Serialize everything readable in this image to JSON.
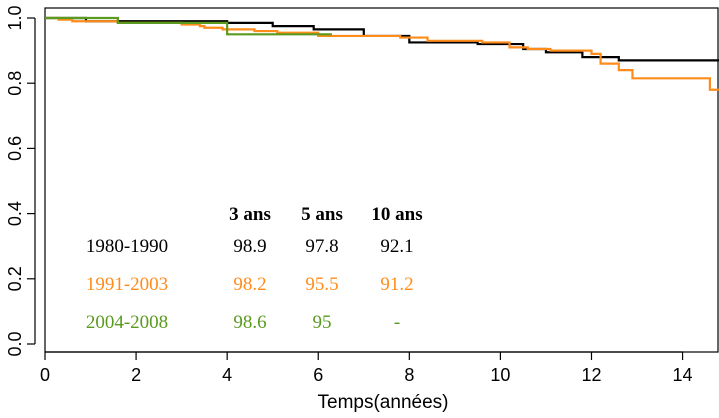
{
  "chart_data": {
    "type": "line",
    "xlabel": "Temps(années)",
    "ylabel": "",
    "xlim": [
      0,
      14.8
    ],
    "ylim": [
      0.0,
      1.0
    ],
    "x_ticks": [
      0,
      2,
      4,
      6,
      8,
      10,
      12,
      14
    ],
    "y_ticks": [
      0.0,
      0.2,
      0.4,
      0.6,
      0.8,
      1.0
    ],
    "y_tick_labels": [
      "0.0",
      "0.2",
      "0.4",
      "0.6",
      "0.8",
      "1.0"
    ],
    "grid": false,
    "series": [
      {
        "name": "1980-1990",
        "color": "#000000",
        "step": true,
        "points": [
          [
            0,
            1.0
          ],
          [
            0.9,
            0.99
          ],
          [
            4.0,
            0.985
          ],
          [
            5.0,
            0.975
          ],
          [
            5.9,
            0.965
          ],
          [
            7.0,
            0.945
          ],
          [
            8.0,
            0.925
          ],
          [
            9.5,
            0.92
          ],
          [
            10.5,
            0.905
          ],
          [
            11.0,
            0.895
          ],
          [
            11.8,
            0.88
          ],
          [
            12.6,
            0.87
          ],
          [
            13.4,
            0.87
          ],
          [
            14.8,
            0.87
          ]
        ]
      },
      {
        "name": "1991-2003",
        "color": "#ff8c1a",
        "step": true,
        "points": [
          [
            0,
            1.0
          ],
          [
            0.3,
            0.995
          ],
          [
            0.6,
            0.99
          ],
          [
            1.6,
            0.985
          ],
          [
            3.0,
            0.98
          ],
          [
            3.4,
            0.975
          ],
          [
            3.5,
            0.97
          ],
          [
            3.9,
            0.965
          ],
          [
            4.6,
            0.96
          ],
          [
            5.1,
            0.955
          ],
          [
            6.0,
            0.945
          ],
          [
            7.8,
            0.94
          ],
          [
            8.4,
            0.93
          ],
          [
            9.6,
            0.925
          ],
          [
            10.2,
            0.91
          ],
          [
            10.6,
            0.905
          ],
          [
            11.1,
            0.9
          ],
          [
            12.0,
            0.89
          ],
          [
            12.2,
            0.86
          ],
          [
            12.6,
            0.84
          ],
          [
            12.9,
            0.815
          ],
          [
            14.6,
            0.78
          ],
          [
            14.8,
            0.78
          ]
        ]
      },
      {
        "name": "2004-2008",
        "color": "#5a9a1e",
        "step": true,
        "points": [
          [
            0,
            1.0
          ],
          [
            1.6,
            0.985
          ],
          [
            4.0,
            0.95
          ],
          [
            6.3,
            0.95
          ]
        ]
      }
    ],
    "table": {
      "headers": [
        "3 ans",
        "5 ans",
        "10 ans"
      ],
      "rows": [
        {
          "label": "1980-1990",
          "color": "#000000",
          "values": [
            "98.9",
            "97.8",
            "92.1"
          ]
        },
        {
          "label": "1991-2003",
          "color": "#ff8c1a",
          "values": [
            "98.2",
            "95.5",
            "91.2"
          ]
        },
        {
          "label": "2004-2008",
          "color": "#5a9a1e",
          "values": [
            "98.6",
            "95",
            "-"
          ]
        }
      ]
    }
  }
}
